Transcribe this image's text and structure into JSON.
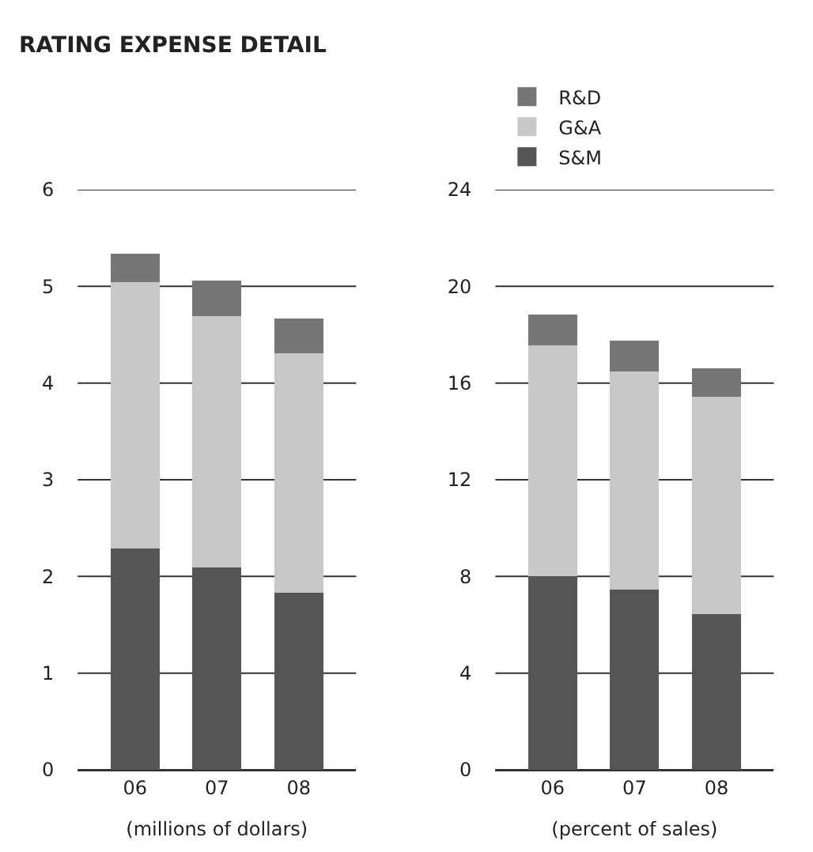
{
  "chart_data": [
    {
      "type": "bar",
      "title": "RATING EXPENSE DETAIL",
      "xlabel": "(millions of dollars)",
      "categories": [
        "06",
        "07",
        "08"
      ],
      "stacked": true,
      "legend": "top right",
      "grid": "y",
      "ylim": [
        0,
        6
      ],
      "yticks": [
        0,
        1,
        2,
        3,
        4,
        5,
        6
      ],
      "series": [
        {
          "name": "S&M",
          "color": "#555555",
          "values": [
            2.29,
            2.09,
            1.83
          ]
        },
        {
          "name": "G&A",
          "color": "#c8c8c8",
          "values": [
            2.75,
            2.6,
            2.48
          ]
        },
        {
          "name": "R&D",
          "color": "#767676",
          "values": [
            0.3,
            0.37,
            0.36
          ]
        }
      ]
    },
    {
      "type": "bar",
      "xlabel": "(percent of sales)",
      "categories": [
        "06",
        "07",
        "08"
      ],
      "stacked": true,
      "grid": "y",
      "ylim": [
        0,
        24
      ],
      "yticks": [
        0,
        4,
        8,
        12,
        16,
        20,
        24
      ],
      "series": [
        {
          "color": "#555555",
          "values": [
            8.0,
            7.45,
            6.44
          ]
        },
        {
          "color": "#c8c8c8",
          "values": [
            9.56,
            9.03,
            8.99
          ]
        },
        {
          "color": "#767676",
          "values": [
            1.29,
            1.29,
            1.19
          ]
        }
      ]
    }
  ]
}
